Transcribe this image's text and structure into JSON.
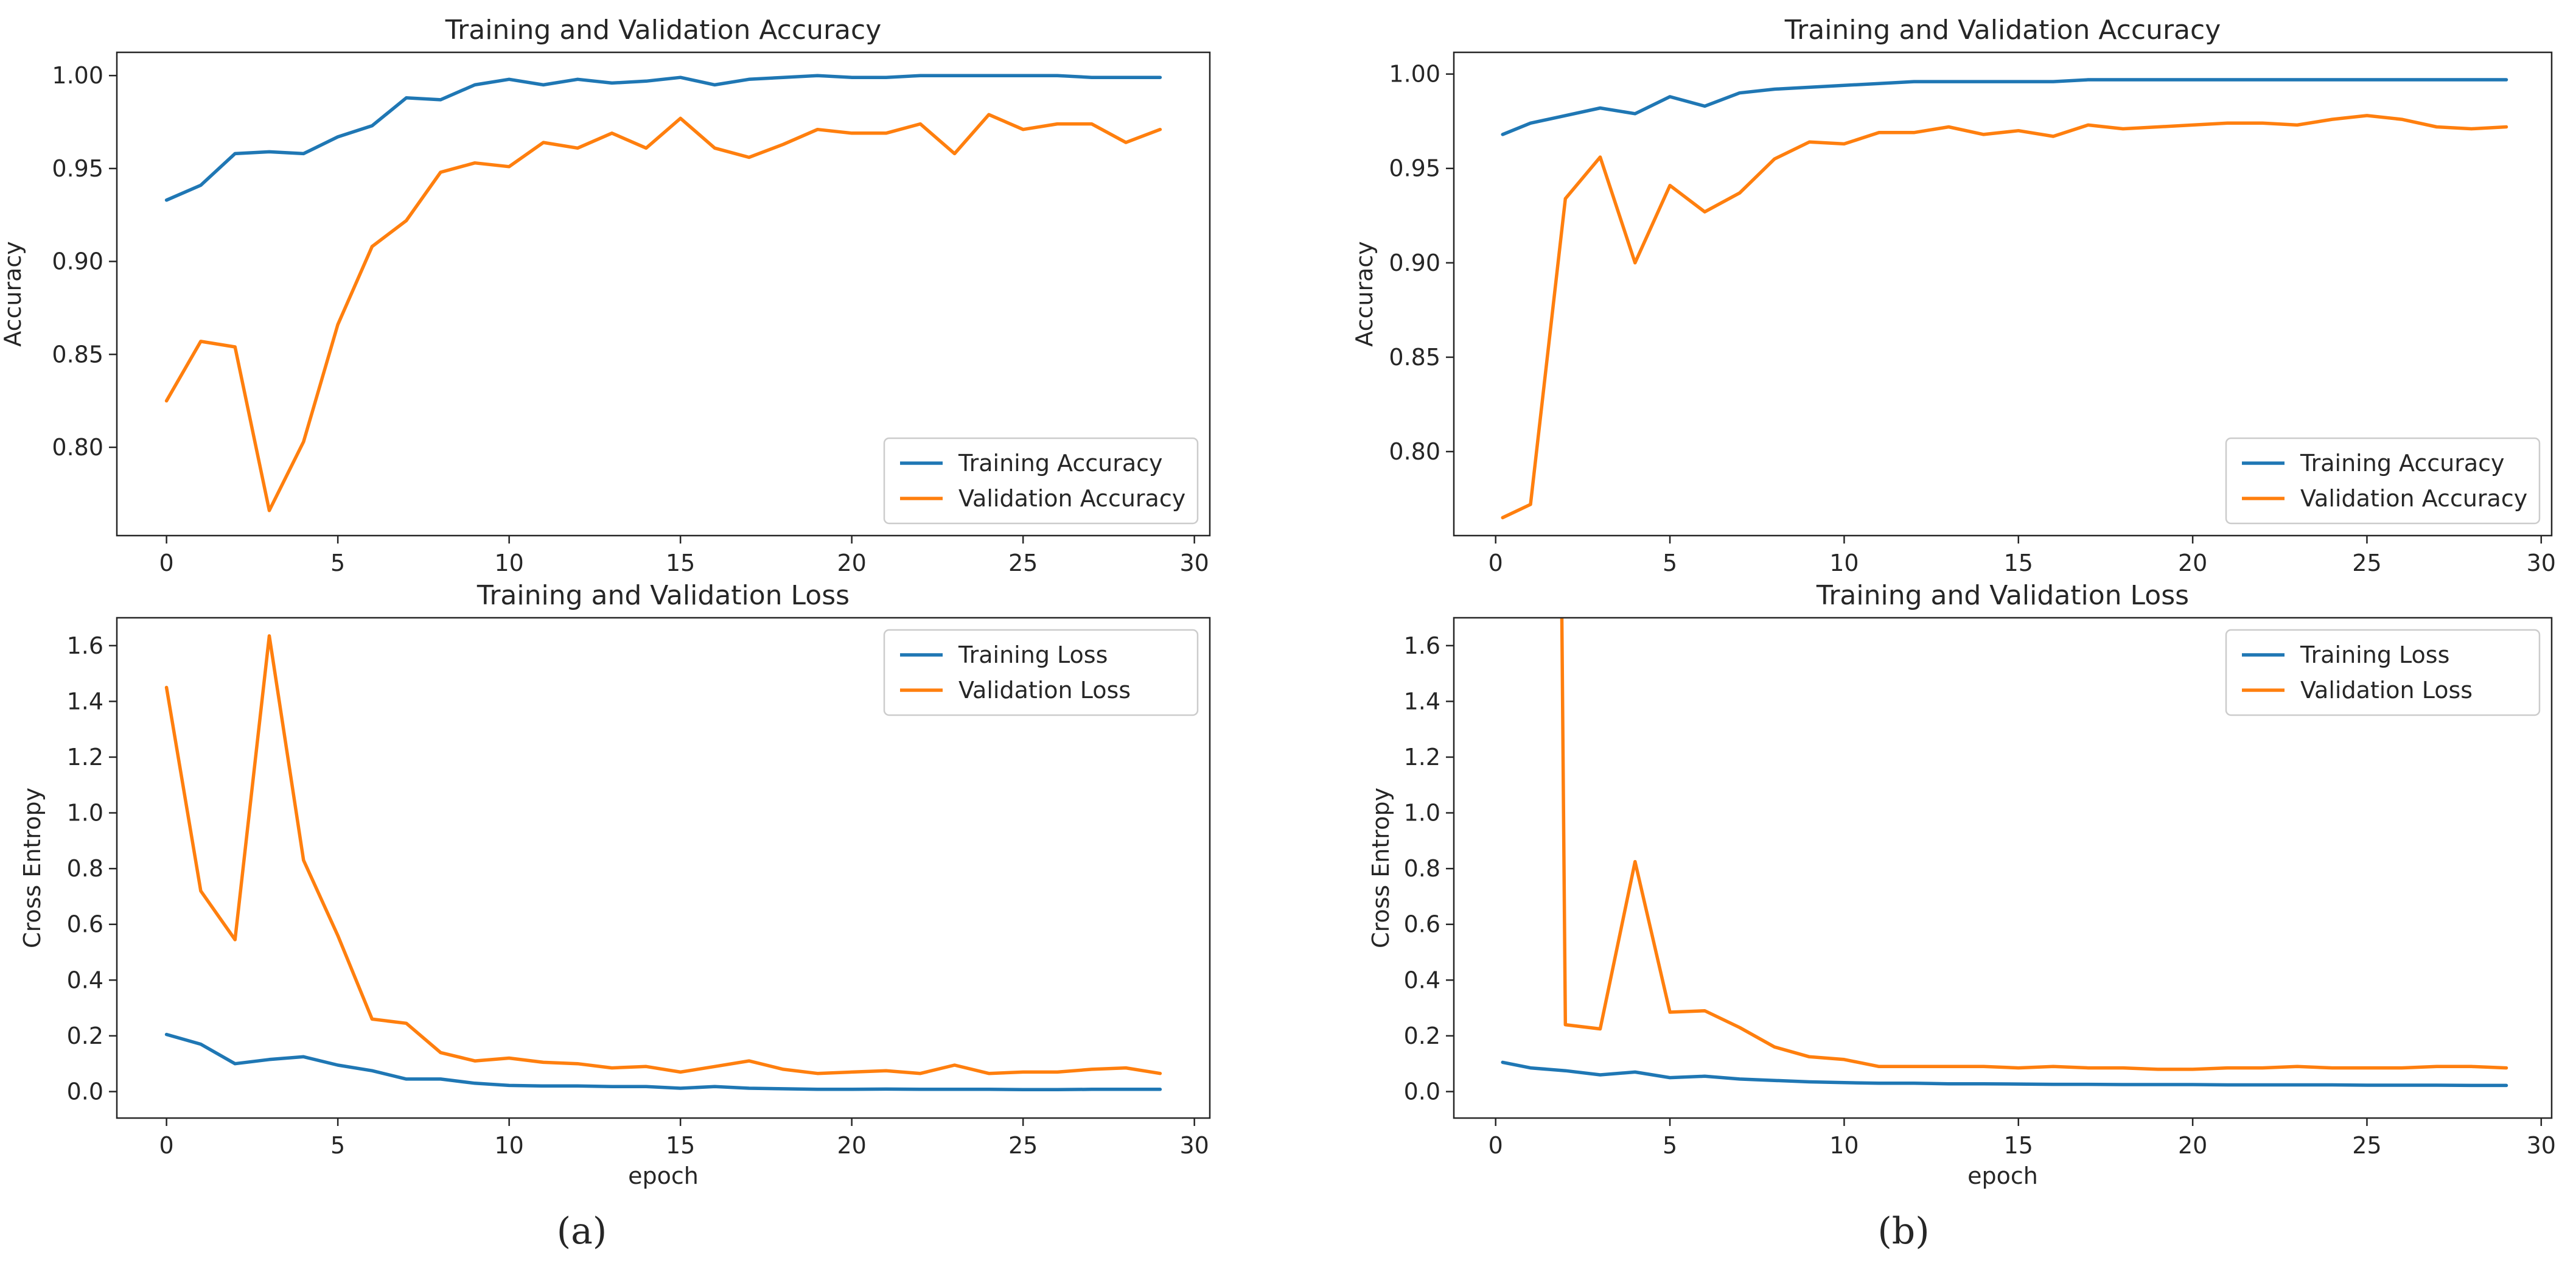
{
  "captions": {
    "a": "(a)",
    "b": "(b)"
  },
  "colors": {
    "training": "#1f77b4",
    "validation": "#ff7f0e",
    "axis": "#262626"
  },
  "chart_data": [
    {
      "id": "a-acc",
      "type": "line",
      "title": "Training and Validation Accuracy",
      "xlabel": "",
      "ylabel": "Accuracy",
      "xlim": [
        -1.45,
        30.45
      ],
      "ylim": [
        0.7525,
        1.0125
      ],
      "xticks": [
        0,
        5,
        10,
        15,
        20,
        25,
        30
      ],
      "yticks": [
        0.8,
        0.85,
        0.9,
        0.95,
        1.0
      ],
      "ytick_labels": [
        "0.80",
        "0.85",
        "0.90",
        "0.95",
        "1.00"
      ],
      "legend": "lower-right",
      "series": [
        {
          "name": "Training Accuracy",
          "color": "#1f77b4",
          "x": [
            0,
            1,
            2,
            3,
            4,
            5,
            6,
            7,
            8,
            9,
            10,
            11,
            12,
            13,
            14,
            15,
            16,
            17,
            18,
            19,
            20,
            21,
            22,
            23,
            24,
            25,
            26,
            27,
            28,
            29
          ],
          "y": [
            0.933,
            0.941,
            0.958,
            0.959,
            0.958,
            0.967,
            0.973,
            0.988,
            0.987,
            0.995,
            0.998,
            0.995,
            0.998,
            0.996,
            0.997,
            0.999,
            0.995,
            0.998,
            0.999,
            1.0,
            0.999,
            0.999,
            1.0,
            1.0,
            1.0,
            1.0,
            1.0,
            0.999,
            0.999,
            0.999
          ]
        },
        {
          "name": "Validation Accuracy",
          "color": "#ff7f0e",
          "x": [
            0,
            1,
            2,
            3,
            4,
            5,
            6,
            7,
            8,
            9,
            10,
            11,
            12,
            13,
            14,
            15,
            16,
            17,
            18,
            19,
            20,
            21,
            22,
            23,
            24,
            25,
            26,
            27,
            28,
            29
          ],
          "y": [
            0.825,
            0.857,
            0.854,
            0.766,
            0.803,
            0.866,
            0.908,
            0.922,
            0.948,
            0.953,
            0.951,
            0.964,
            0.961,
            0.969,
            0.961,
            0.977,
            0.961,
            0.956,
            0.963,
            0.971,
            0.969,
            0.969,
            0.974,
            0.958,
            0.979,
            0.971,
            0.974,
            0.974,
            0.964,
            0.971
          ]
        }
      ]
    },
    {
      "id": "b-acc",
      "type": "line",
      "title": "Training and Validation Accuracy",
      "xlabel": "",
      "ylabel": "Accuracy",
      "xlim": [
        -1.2,
        30.3
      ],
      "ylim": [
        0.7555,
        1.0115
      ],
      "xticks": [
        0,
        5,
        10,
        15,
        20,
        25,
        30
      ],
      "yticks": [
        0.8,
        0.85,
        0.9,
        0.95,
        1.0
      ],
      "ytick_labels": [
        "0.80",
        "0.85",
        "0.90",
        "0.95",
        "1.00"
      ],
      "legend": "lower-right",
      "series": [
        {
          "name": "Training Accuracy",
          "color": "#1f77b4",
          "x": [
            0.2,
            1,
            2,
            3,
            4,
            5,
            6,
            7,
            8,
            9,
            10,
            11,
            12,
            13,
            14,
            15,
            16,
            17,
            18,
            19,
            20,
            21,
            22,
            23,
            24,
            25,
            26,
            27,
            28,
            29
          ],
          "y": [
            0.968,
            0.974,
            0.978,
            0.982,
            0.979,
            0.988,
            0.983,
            0.99,
            0.992,
            0.993,
            0.994,
            0.995,
            0.996,
            0.996,
            0.996,
            0.996,
            0.996,
            0.997,
            0.997,
            0.997,
            0.997,
            0.997,
            0.997,
            0.997,
            0.997,
            0.997,
            0.997,
            0.997,
            0.997,
            0.997
          ]
        },
        {
          "name": "Validation Accuracy",
          "color": "#ff7f0e",
          "x": [
            0.2,
            1,
            2,
            3,
            4,
            5,
            6,
            7,
            8,
            9,
            10,
            11,
            12,
            13,
            14,
            15,
            16,
            17,
            18,
            19,
            20,
            21,
            22,
            23,
            24,
            25,
            26,
            27,
            28,
            29
          ],
          "y": [
            0.765,
            0.772,
            0.934,
            0.956,
            0.9,
            0.941,
            0.927,
            0.937,
            0.955,
            0.964,
            0.963,
            0.969,
            0.969,
            0.972,
            0.968,
            0.97,
            0.967,
            0.973,
            0.971,
            0.972,
            0.973,
            0.974,
            0.974,
            0.973,
            0.976,
            0.978,
            0.976,
            0.972,
            0.971,
            0.972
          ]
        }
      ]
    },
    {
      "id": "a-loss",
      "type": "line",
      "title": "Training and Validation Loss",
      "xlabel": "epoch",
      "ylabel": "Cross Entropy",
      "xlim": [
        -1.45,
        30.45
      ],
      "ylim": [
        -0.095,
        1.7
      ],
      "xticks": [
        0,
        5,
        10,
        15,
        20,
        25,
        30
      ],
      "yticks": [
        0.0,
        0.2,
        0.4,
        0.6,
        0.8,
        1.0,
        1.2,
        1.4,
        1.6
      ],
      "ytick_labels": [
        "0.0",
        "0.2",
        "0.4",
        "0.6",
        "0.8",
        "1.0",
        "1.2",
        "1.4",
        "1.6"
      ],
      "legend": "top-right",
      "series": [
        {
          "name": "Training Loss",
          "color": "#1f77b4",
          "x": [
            0,
            1,
            2,
            3,
            4,
            5,
            6,
            7,
            8,
            9,
            10,
            11,
            12,
            13,
            14,
            15,
            16,
            17,
            18,
            19,
            20,
            21,
            22,
            23,
            24,
            25,
            26,
            27,
            28,
            29
          ],
          "y": [
            0.205,
            0.17,
            0.1,
            0.115,
            0.125,
            0.095,
            0.075,
            0.045,
            0.045,
            0.03,
            0.022,
            0.02,
            0.02,
            0.018,
            0.018,
            0.012,
            0.018,
            0.012,
            0.01,
            0.008,
            0.008,
            0.009,
            0.008,
            0.008,
            0.008,
            0.007,
            0.007,
            0.008,
            0.008,
            0.008
          ]
        },
        {
          "name": "Validation Loss",
          "color": "#ff7f0e",
          "x": [
            0,
            1,
            2,
            3,
            4,
            5,
            6,
            7,
            8,
            9,
            10,
            11,
            12,
            13,
            14,
            15,
            16,
            17,
            18,
            19,
            20,
            21,
            22,
            23,
            24,
            25,
            26,
            27,
            28,
            29
          ],
          "y": [
            1.45,
            0.72,
            0.545,
            1.635,
            0.83,
            0.56,
            0.26,
            0.245,
            0.14,
            0.11,
            0.12,
            0.105,
            0.1,
            0.085,
            0.09,
            0.07,
            0.09,
            0.11,
            0.08,
            0.065,
            0.07,
            0.075,
            0.065,
            0.095,
            0.065,
            0.07,
            0.07,
            0.08,
            0.085,
            0.065
          ]
        }
      ]
    },
    {
      "id": "b-loss",
      "type": "line",
      "title": "Training and Validation Loss",
      "xlabel": "epoch",
      "ylabel": "Cross Entropy",
      "xlim": [
        -1.2,
        30.3
      ],
      "ylim": [
        -0.095,
        1.7
      ],
      "xticks": [
        0,
        5,
        10,
        15,
        20,
        25,
        30
      ],
      "yticks": [
        0.0,
        0.2,
        0.4,
        0.6,
        0.8,
        1.0,
        1.2,
        1.4,
        1.6
      ],
      "ytick_labels": [
        "0.0",
        "0.2",
        "0.4",
        "0.6",
        "0.8",
        "1.0",
        "1.2",
        "1.4",
        "1.6"
      ],
      "legend": "top-right",
      "series": [
        {
          "name": "Training Loss",
          "color": "#1f77b4",
          "x": [
            0.2,
            1,
            2,
            3,
            4,
            5,
            6,
            7,
            8,
            9,
            10,
            11,
            12,
            13,
            14,
            15,
            16,
            17,
            18,
            19,
            20,
            21,
            22,
            23,
            24,
            25,
            26,
            27,
            28,
            29
          ],
          "y": [
            0.105,
            0.085,
            0.075,
            0.06,
            0.07,
            0.05,
            0.055,
            0.045,
            0.04,
            0.035,
            0.032,
            0.03,
            0.03,
            0.028,
            0.028,
            0.027,
            0.026,
            0.026,
            0.025,
            0.025,
            0.025,
            0.024,
            0.024,
            0.024,
            0.024,
            0.023,
            0.023,
            0.023,
            0.022,
            0.022
          ]
        },
        {
          "name": "Validation Loss",
          "color": "#ff7f0e",
          "x": [
            1.9,
            2,
            3,
            4,
            5,
            6,
            7,
            8,
            9,
            10,
            11,
            12,
            13,
            14,
            15,
            16,
            17,
            18,
            19,
            20,
            21,
            22,
            23,
            24,
            25,
            26,
            27,
            28,
            29
          ],
          "y": [
            1.7,
            0.24,
            0.225,
            0.825,
            0.285,
            0.29,
            0.23,
            0.16,
            0.125,
            0.115,
            0.09,
            0.09,
            0.09,
            0.09,
            0.085,
            0.09,
            0.085,
            0.085,
            0.08,
            0.08,
            0.085,
            0.085,
            0.09,
            0.085,
            0.085,
            0.085,
            0.09,
            0.09,
            0.085
          ]
        }
      ]
    }
  ]
}
